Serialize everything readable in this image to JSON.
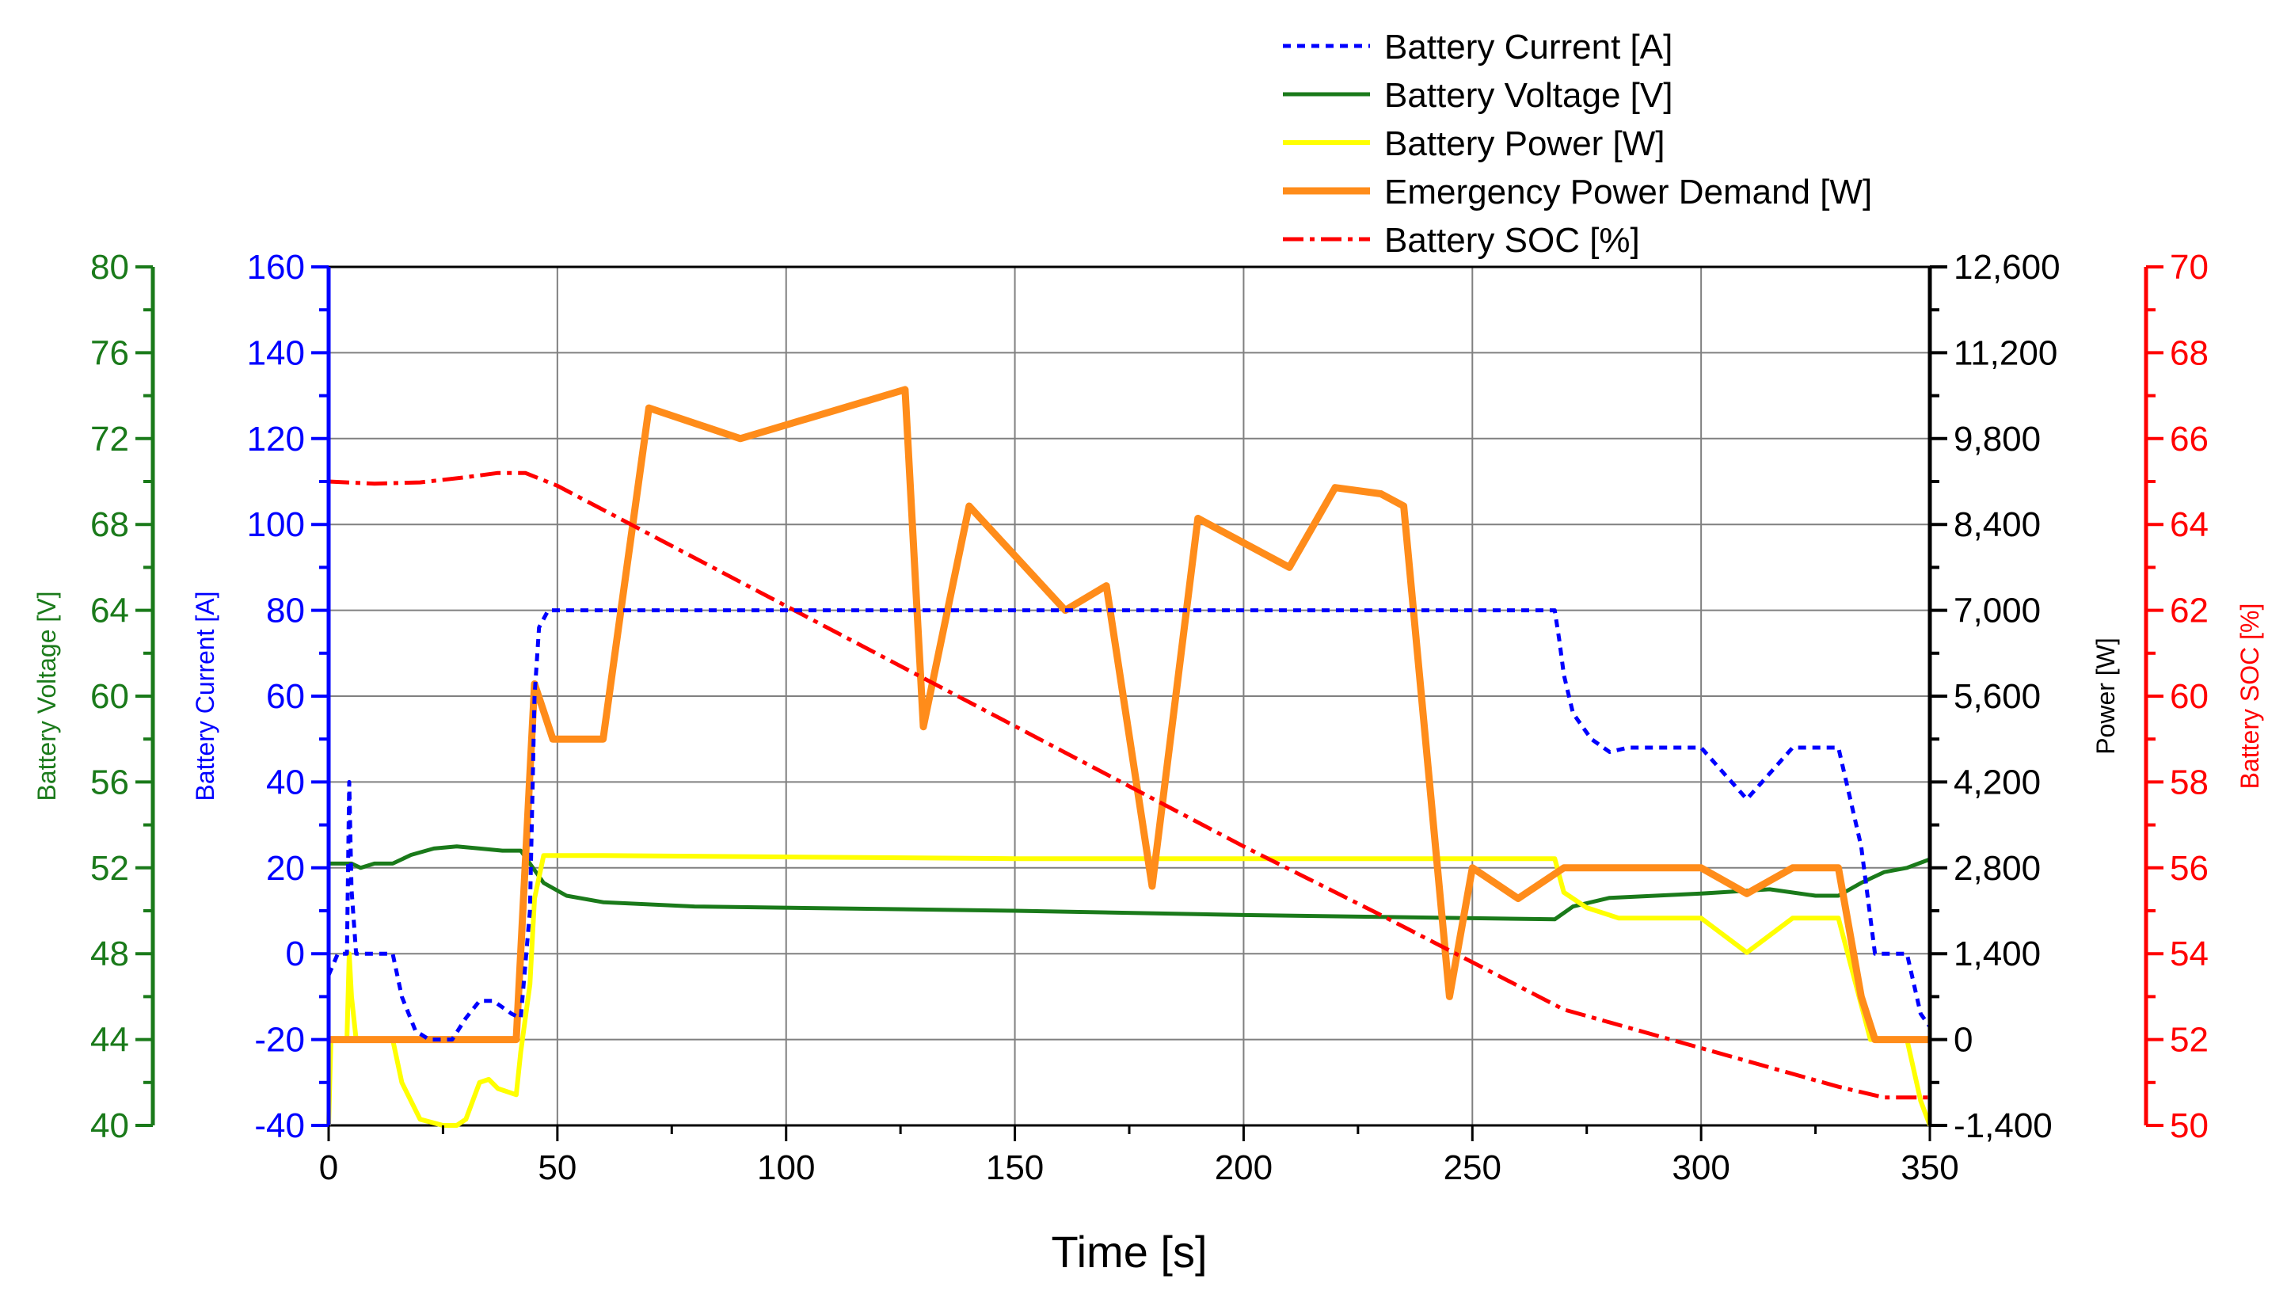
{
  "chart_data": {
    "type": "line",
    "xlabel": "Time [s]",
    "xlim": [
      0,
      350
    ],
    "xticks": [
      0,
      50,
      100,
      150,
      200,
      250,
      300,
      350
    ],
    "grid": true,
    "legend_position": "top-right",
    "axes": {
      "voltage": {
        "label": "Battery Voltage [V]",
        "range": [
          40,
          80
        ],
        "ticks": [
          40,
          44,
          48,
          52,
          56,
          60,
          64,
          68,
          72,
          76,
          80
        ],
        "color": "#1a7a1a",
        "side": "left-outer"
      },
      "current": {
        "label": "Battery Current [A]",
        "range": [
          -40,
          160
        ],
        "ticks": [
          -40,
          -20,
          0,
          20,
          40,
          60,
          80,
          100,
          120,
          140,
          160
        ],
        "color": "#0000ff",
        "side": "left-inner"
      },
      "power": {
        "label": "Power [W]",
        "range": [
          -1400,
          12600
        ],
        "ticks": [
          -1400,
          0,
          1400,
          2800,
          4200,
          5600,
          7000,
          8400,
          9800,
          11200,
          12600
        ],
        "tick_labels": [
          "-1,400",
          "0",
          "1,400",
          "2,800",
          "4,200",
          "5,600",
          "7,000",
          "8,400",
          "9,800",
          "11,200",
          "12,600"
        ],
        "color": "#000000",
        "side": "right-inner"
      },
      "soc": {
        "label": "Battery SOC [%]",
        "range": [
          50,
          70
        ],
        "ticks": [
          50,
          52,
          54,
          56,
          58,
          60,
          62,
          64,
          66,
          68,
          70
        ],
        "color": "#ff0000",
        "side": "right-outer"
      }
    },
    "series": [
      {
        "name": "Battery Current [A]",
        "axis": "current",
        "color": "#0000ff",
        "dash": "dot",
        "width": 5,
        "points": [
          [
            0,
            -5
          ],
          [
            2,
            0
          ],
          [
            4,
            0
          ],
          [
            4.5,
            40
          ],
          [
            5,
            15
          ],
          [
            6,
            0
          ],
          [
            14,
            0
          ],
          [
            16,
            -10
          ],
          [
            19,
            -18
          ],
          [
            22,
            -20
          ],
          [
            27,
            -20
          ],
          [
            30,
            -15
          ],
          [
            33,
            -11
          ],
          [
            36,
            -11
          ],
          [
            40,
            -14
          ],
          [
            42,
            -15
          ],
          [
            44,
            10
          ],
          [
            45,
            60
          ],
          [
            46,
            76
          ],
          [
            48,
            80
          ],
          [
            60,
            80
          ],
          [
            100,
            80
          ],
          [
            150,
            80
          ],
          [
            200,
            80
          ],
          [
            268,
            80
          ],
          [
            269,
            73
          ],
          [
            270,
            65
          ],
          [
            272,
            56
          ],
          [
            276,
            50
          ],
          [
            280,
            47
          ],
          [
            284,
            48
          ],
          [
            300,
            48
          ],
          [
            310,
            36
          ],
          [
            320,
            48
          ],
          [
            330,
            48
          ],
          [
            335,
            25
          ],
          [
            338,
            0
          ],
          [
            345,
            0
          ],
          [
            348,
            -14
          ],
          [
            350,
            -17
          ]
        ]
      },
      {
        "name": "Battery Voltage [V]",
        "axis": "voltage",
        "color": "#1a7a1a",
        "dash": "solid",
        "width": 5,
        "points": [
          [
            0,
            52.2
          ],
          [
            5,
            52.2
          ],
          [
            7,
            52
          ],
          [
            10,
            52.2
          ],
          [
            14,
            52.2
          ],
          [
            18,
            52.6
          ],
          [
            23,
            52.9
          ],
          [
            28,
            53
          ],
          [
            33,
            52.9
          ],
          [
            38,
            52.8
          ],
          [
            42,
            52.8
          ],
          [
            44,
            52.2
          ],
          [
            47,
            51.3
          ],
          [
            52,
            50.7
          ],
          [
            60,
            50.4
          ],
          [
            80,
            50.2
          ],
          [
            150,
            50
          ],
          [
            200,
            49.8
          ],
          [
            268,
            49.6
          ],
          [
            272,
            50.2
          ],
          [
            280,
            50.6
          ],
          [
            300,
            50.8
          ],
          [
            315,
            51
          ],
          [
            325,
            50.7
          ],
          [
            330,
            50.7
          ],
          [
            335,
            51.3
          ],
          [
            340,
            51.8
          ],
          [
            345,
            52
          ],
          [
            350,
            52.4
          ]
        ]
      },
      {
        "name": "Battery Power [W]",
        "axis": "power",
        "color": "#ffff00",
        "dash": "solid",
        "width": 6,
        "points": [
          [
            0,
            -1400
          ],
          [
            0.5,
            0
          ],
          [
            4,
            0
          ],
          [
            4.5,
            1400
          ],
          [
            5,
            700
          ],
          [
            6,
            0
          ],
          [
            14,
            0
          ],
          [
            16,
            -700
          ],
          [
            20,
            -1300
          ],
          [
            25,
            -1400
          ],
          [
            28,
            -1400
          ],
          [
            30,
            -1300
          ],
          [
            33,
            -700
          ],
          [
            35,
            -650
          ],
          [
            37,
            -800
          ],
          [
            41,
            -900
          ],
          [
            42,
            -200
          ],
          [
            44,
            900
          ],
          [
            45,
            2300
          ],
          [
            47,
            3000
          ],
          [
            60,
            3000
          ],
          [
            150,
            2950
          ],
          [
            268,
            2950
          ],
          [
            270,
            2400
          ],
          [
            275,
            2150
          ],
          [
            282,
            1980
          ],
          [
            300,
            1980
          ],
          [
            310,
            1420
          ],
          [
            320,
            1980
          ],
          [
            330,
            1980
          ],
          [
            337,
            0
          ],
          [
            340,
            0
          ],
          [
            345,
            0
          ],
          [
            348,
            -1000
          ],
          [
            350,
            -1400
          ]
        ]
      },
      {
        "name": "Emergency Power Demand [W]",
        "axis": "power",
        "color": "#ff8c1a",
        "dash": "solid",
        "width": 9,
        "points": [
          [
            0,
            0
          ],
          [
            41,
            0
          ],
          [
            45,
            5800
          ],
          [
            49,
            4900
          ],
          [
            60,
            4900
          ],
          [
            70,
            10300
          ],
          [
            90,
            9800
          ],
          [
            126,
            10600
          ],
          [
            130,
            5100
          ],
          [
            140,
            8700
          ],
          [
            161,
            7000
          ],
          [
            170,
            7400
          ],
          [
            180,
            2500
          ],
          [
            190,
            8500
          ],
          [
            210,
            7700
          ],
          [
            220,
            9000
          ],
          [
            230,
            8900
          ],
          [
            235,
            8700
          ],
          [
            245,
            700
          ],
          [
            250,
            2800
          ],
          [
            260,
            2300
          ],
          [
            270,
            2800
          ],
          [
            300,
            2800
          ],
          [
            310,
            2380
          ],
          [
            320,
            2800
          ],
          [
            330,
            2800
          ],
          [
            335,
            700
          ],
          [
            338,
            0
          ],
          [
            350,
            0
          ]
        ]
      },
      {
        "name": "Battery SOC [%]",
        "axis": "soc",
        "color": "#ff0000",
        "dash": "dashdot",
        "width": 5,
        "points": [
          [
            0,
            65
          ],
          [
            10,
            64.95
          ],
          [
            20,
            64.98
          ],
          [
            30,
            65.1
          ],
          [
            37,
            65.2
          ],
          [
            43,
            65.2
          ],
          [
            50,
            64.9
          ],
          [
            100,
            62.1
          ],
          [
            150,
            59.3
          ],
          [
            200,
            56.5
          ],
          [
            230,
            54.9
          ],
          [
            250,
            53.8
          ],
          [
            270,
            52.7
          ],
          [
            300,
            51.8
          ],
          [
            330,
            50.9
          ],
          [
            340,
            50.65
          ],
          [
            350,
            50.65
          ]
        ]
      }
    ]
  }
}
